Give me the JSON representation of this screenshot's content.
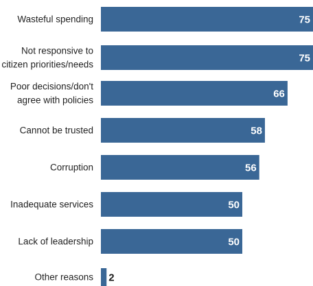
{
  "chart_data": {
    "type": "bar",
    "orientation": "horizontal",
    "categories": [
      [
        "Wasteful spending"
      ],
      [
        "Not responsive to",
        "citizen priorities/needs"
      ],
      [
        "Poor decisions/don't",
        "agree with policies"
      ],
      [
        "Cannot be trusted"
      ],
      [
        "Corruption"
      ],
      [
        "Inadequate services"
      ],
      [
        "Lack of leadership"
      ],
      [
        "Other reasons"
      ]
    ],
    "values": [
      75,
      75,
      66,
      58,
      56,
      50,
      50,
      2
    ],
    "xlim": [
      0,
      75
    ],
    "grid": false,
    "legend": "none",
    "bar_color": "#3a6796",
    "label_inside_color": "#ffffff",
    "label_outside_color": "#1a1a1a"
  }
}
